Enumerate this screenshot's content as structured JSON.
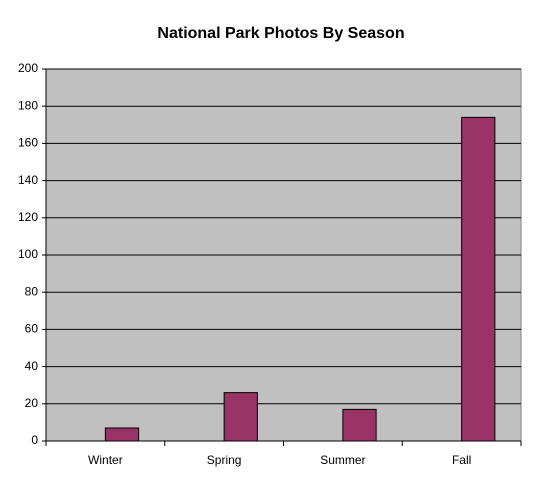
{
  "chart_data": {
    "type": "bar",
    "title": "National Park Photos By Season",
    "categories": [
      "Winter",
      "Spring",
      "Summer",
      "Fall"
    ],
    "values": [
      7,
      26,
      17,
      174
    ],
    "color": "#993366",
    "ylim": [
      0,
      200
    ],
    "yticks": [
      0,
      20,
      40,
      60,
      80,
      100,
      120,
      140,
      160,
      180,
      200
    ],
    "grid": true
  }
}
